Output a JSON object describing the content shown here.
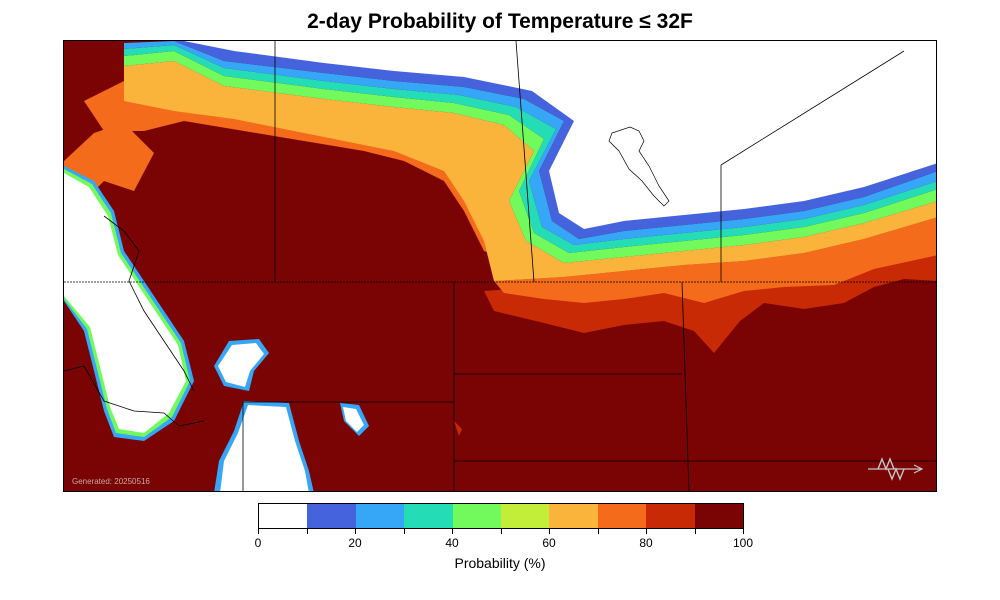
{
  "title": "2-day Probability of Temperature ≤ 32F",
  "generated": "Generated: 20250516",
  "logo_icon": "weather-service-logo-icon",
  "colorbar": {
    "label": "Probability (%)",
    "colors": [
      "#ffffff",
      "#4463dc",
      "#36a6f7",
      "#24dcb5",
      "#72f95b",
      "#c2ee3a",
      "#fab43c",
      "#f56b1c",
      "#c72a05",
      "#7a0404"
    ],
    "tick_values": [
      0,
      20,
      40,
      60,
      80,
      100
    ],
    "tick_labels": [
      "0",
      "20",
      "40",
      "60",
      "80",
      "100"
    ],
    "tick_marks": [
      0,
      10,
      20,
      30,
      40,
      50,
      60,
      70,
      80,
      90,
      100
    ],
    "range": [
      0,
      100
    ]
  }
}
